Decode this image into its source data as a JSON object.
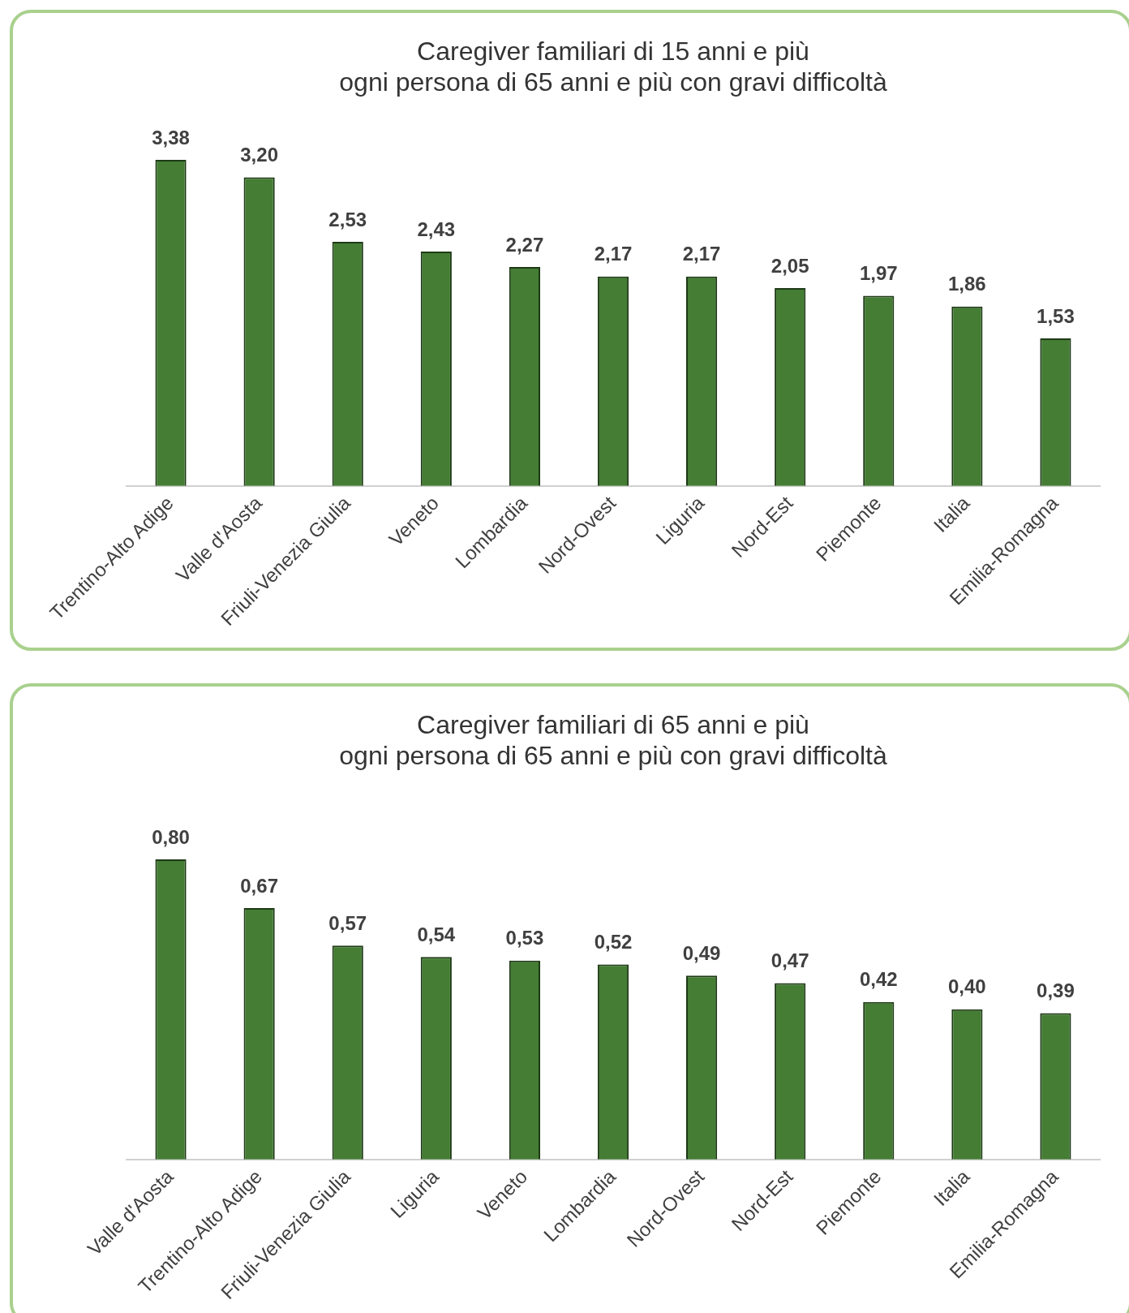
{
  "chart_data": [
    {
      "type": "bar",
      "title": "Caregiver familiari di 15 anni e più\nogni persona di 65 anni e più con gravi difficoltà",
      "categories": [
        "Trentino-Alto Adige",
        "Valle d'Aosta",
        "Friuli-Venezia Giulia",
        "Veneto",
        "Lombardia",
        "Nord-Ovest",
        "Liguria",
        "Nord-Est",
        "Piemonte",
        "Italia",
        "Emilia-Romagna"
      ],
      "values": [
        3.38,
        3.2,
        2.53,
        2.43,
        2.27,
        2.17,
        2.17,
        2.05,
        1.97,
        1.86,
        1.53
      ],
      "value_labels": [
        "3,38",
        "3,20",
        "2,53",
        "2,43",
        "2,27",
        "2,17",
        "2,17",
        "2,05",
        "1,97",
        "1,86",
        "1,53"
      ],
      "color": "#447d33",
      "grid": false,
      "legend": false,
      "tick_labels": "x"
    },
    {
      "type": "bar",
      "title": "Caregiver familiari di 65 anni e più\nogni persona di 65 anni e più con gravi difficoltà",
      "categories": [
        "Valle d'Aosta",
        "Trentino-Alto Adige",
        "Friuli-Venezia Giulia",
        "Liguria",
        "Veneto",
        "Lombardia",
        "Nord-Ovest",
        "Nord-Est",
        "Piemonte",
        "Italia",
        "Emilia-Romagna"
      ],
      "values": [
        0.8,
        0.67,
        0.57,
        0.54,
        0.53,
        0.52,
        0.49,
        0.47,
        0.42,
        0.4,
        0.39
      ],
      "value_labels": [
        "0,80",
        "0,67",
        "0,57",
        "0,54",
        "0,53",
        "0,52",
        "0,49",
        "0,47",
        "0,42",
        "0,40",
        "0,39"
      ],
      "color": "#447d33",
      "grid": false,
      "legend": false,
      "tick_labels": "x"
    }
  ]
}
